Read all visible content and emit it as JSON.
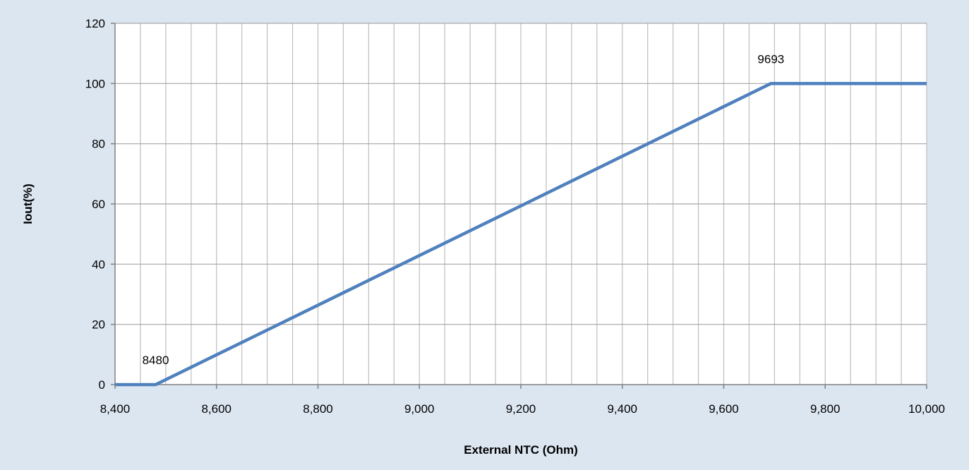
{
  "chart_data": {
    "type": "line",
    "title": "",
    "xlabel": "External NTC (Ohm)",
    "ylabel": "Iout(%)",
    "xlim": [
      8400,
      10000
    ],
    "ylim": [
      0,
      120
    ],
    "x_major_ticks": [
      8400,
      8600,
      8800,
      9000,
      9200,
      9400,
      9600,
      9800,
      10000
    ],
    "x_tick_labels": [
      "8,400",
      "8,600",
      "8,800",
      "9,000",
      "9,200",
      "9,400",
      "9,600",
      "9,800",
      "10,000"
    ],
    "x_minor_step": 50,
    "y_ticks": [
      0,
      20,
      40,
      60,
      80,
      100,
      120
    ],
    "y_tick_labels": [
      "0",
      "20",
      "40",
      "60",
      "80",
      "100",
      "120"
    ],
    "grid": true,
    "legend": "none",
    "series": [
      {
        "color": "#4f81bd",
        "points": [
          {
            "x": 8400,
            "y": 0
          },
          {
            "x": 8480,
            "y": 0
          },
          {
            "x": 9693,
            "y": 100
          },
          {
            "x": 10000,
            "y": 100
          }
        ]
      }
    ],
    "annotations": [
      {
        "text": "8480",
        "x": 8480,
        "y": 0
      },
      {
        "text": "9693",
        "x": 9693,
        "y": 100
      }
    ]
  }
}
